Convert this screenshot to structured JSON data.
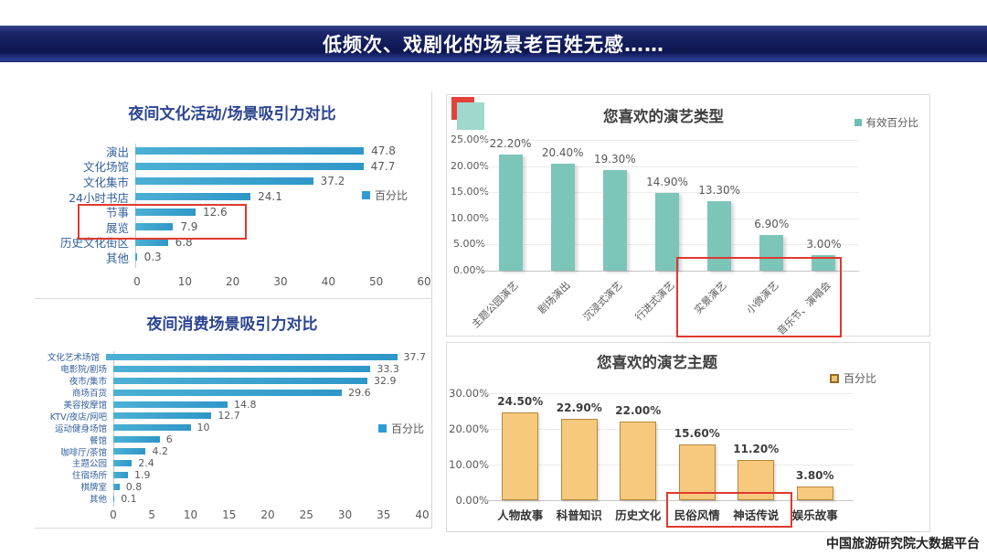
{
  "banner": {
    "title": "低频次、戏剧化的场景老百姓无感……"
  },
  "footer": {
    "text": "中国旅游研究院大数据平台"
  },
  "colors": {
    "banner_navy": "#121b58",
    "title_navy": "#2b4590",
    "bar_blue": "#38a0cc",
    "legend_blue": "#2e9bd5",
    "bar_teal": "#7cc5b9",
    "bar_tan": "#f6c97d",
    "bar_tan_border": "#b5863c",
    "highlight_red": "#e0392f"
  },
  "chart_data": [
    {
      "id": "night-culture-attractiveness",
      "type": "bar",
      "orientation": "horizontal",
      "title": "夜间文化活动/场景吸引力对比",
      "legend_label": "百分比",
      "categories": [
        "演出",
        "文化场馆",
        "文化集市",
        "24小时书店",
        "节事",
        "展览",
        "历史文化街区",
        "其他"
      ],
      "values": [
        47.8,
        47.7,
        37.2,
        24.1,
        12.6,
        7.9,
        6.8,
        0.3
      ],
      "xlim": [
        0,
        60
      ],
      "xticks": [
        0,
        10,
        20,
        30,
        40,
        50,
        60
      ],
      "grid": false,
      "legend_position": "right",
      "highlighted_categories": [
        "节事",
        "展览"
      ]
    },
    {
      "id": "night-consumption-attractiveness",
      "type": "bar",
      "orientation": "horizontal",
      "title": "夜间消费场景吸引力对比",
      "legend_label": "百分比",
      "categories": [
        "文化艺术场馆",
        "电影院/剧场",
        "夜市/集市",
        "商场百货",
        "美容按摩馆",
        "KTV/夜店/网吧",
        "运动健身场馆",
        "餐馆",
        "咖啡厅/茶馆",
        "主题公园",
        "住宿场所",
        "棋牌室",
        "其他"
      ],
      "values": [
        37.7,
        33.3,
        32.9,
        29.6,
        14.8,
        12.7,
        10,
        6,
        4.2,
        2.4,
        1.9,
        0.8,
        0.1
      ],
      "xlim": [
        0,
        40
      ],
      "xticks": [
        0,
        5,
        10,
        15,
        20,
        25,
        30,
        35,
        40
      ],
      "grid": false,
      "legend_position": "right",
      "highlighted_categories": []
    },
    {
      "id": "favorite-performance-types",
      "type": "bar",
      "orientation": "vertical",
      "title": "您喜欢的演艺类型",
      "legend_label": "有效百分比",
      "categories": [
        "主题公园演艺",
        "剧场演出",
        "沉浸式演艺",
        "行进式演艺",
        "实景演艺",
        "小微演艺",
        "音乐节、演唱会"
      ],
      "values": [
        22.2,
        20.4,
        19.3,
        14.9,
        13.3,
        6.9,
        3.0
      ],
      "value_labels": [
        "22.20%",
        "20.40%",
        "19.30%",
        "14.90%",
        "13.30%",
        "6.90%",
        "3.00%"
      ],
      "ylim": [
        0,
        25
      ],
      "ytick_labels": [
        "0.00%",
        "5.00%",
        "10.00%",
        "15.00%",
        "20.00%",
        "25.00%"
      ],
      "grid": true,
      "legend_position": "top-right",
      "highlighted_categories": [
        "实景演艺",
        "小微演艺",
        "音乐节、演唱会"
      ]
    },
    {
      "id": "favorite-performance-themes",
      "type": "bar",
      "orientation": "vertical",
      "title": "您喜欢的演艺主题",
      "legend_label": "百分比",
      "categories": [
        "人物故事",
        "科普知识",
        "历史文化",
        "民俗风情",
        "神话传说",
        "娱乐故事"
      ],
      "values": [
        24.5,
        22.9,
        22.0,
        15.6,
        11.2,
        3.8
      ],
      "value_labels": [
        "24.50%",
        "22.90%",
        "22.00%",
        "15.60%",
        "11.20%",
        "3.80%"
      ],
      "ylim": [
        0,
        30
      ],
      "ytick_labels": [
        "0.00%",
        "10.00%",
        "20.00%",
        "30.00%"
      ],
      "grid": true,
      "legend_position": "top-right",
      "highlighted_categories": [
        "民俗风情",
        "神话传说"
      ]
    }
  ]
}
